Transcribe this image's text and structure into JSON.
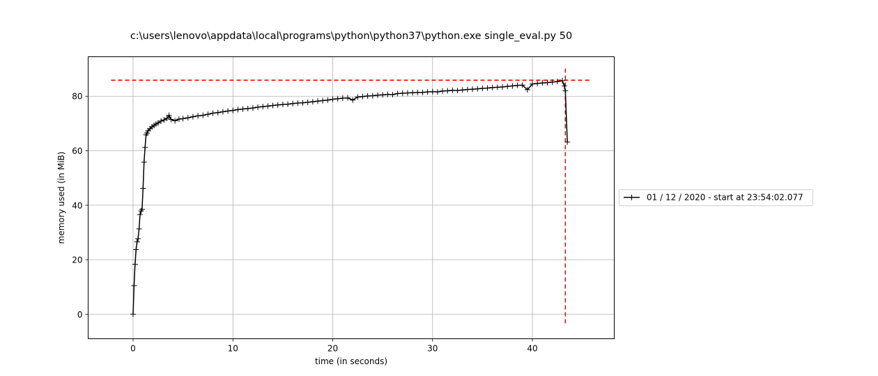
{
  "chart_data": {
    "type": "line",
    "title": "c:\\users\\lenovo\\appdata\\local\\programs\\python\\python37\\python.exe single_eval.py 50",
    "xlabel": "time (in seconds)",
    "ylabel": "memory used (in MiB)",
    "xlim": [
      -4.5,
      48.2
    ],
    "ylim": [
      -9,
      94.5
    ],
    "x_ticks": [
      0,
      10,
      20,
      30,
      40
    ],
    "y_ticks": [
      0,
      20,
      40,
      60,
      80
    ],
    "grid": true,
    "legend_placement": "right, outside the plot",
    "colors": {
      "series": "#000000",
      "markers_lines": "#ff0000",
      "grid": "#b0b0b0"
    },
    "series": [
      {
        "name": "01 / 12 / 2020 - start at 23:54:02.077",
        "marker": "+",
        "points": [
          [
            0.0,
            0.0
          ],
          [
            0.1,
            10.5
          ],
          [
            0.2,
            18.3
          ],
          [
            0.3,
            23.7
          ],
          [
            0.4,
            26.6
          ],
          [
            0.5,
            27.7
          ],
          [
            0.6,
            31.3
          ],
          [
            0.7,
            36.6
          ],
          [
            0.8,
            37.9
          ],
          [
            0.9,
            38.5
          ],
          [
            1.0,
            46.2
          ],
          [
            1.1,
            55.8
          ],
          [
            1.2,
            61.2
          ],
          [
            1.3,
            65.8
          ],
          [
            1.4,
            66.5
          ],
          [
            1.5,
            67.3
          ],
          [
            1.7,
            68.1
          ],
          [
            1.9,
            68.8
          ],
          [
            2.1,
            69.3
          ],
          [
            2.3,
            69.8
          ],
          [
            2.5,
            70.2
          ],
          [
            2.8,
            70.9
          ],
          [
            3.1,
            71.3
          ],
          [
            3.4,
            71.9
          ],
          [
            3.6,
            73.0
          ],
          [
            3.8,
            71.5
          ],
          [
            4.2,
            71.0
          ],
          [
            4.6,
            71.6
          ],
          [
            5.0,
            71.8
          ],
          [
            5.5,
            72.1
          ],
          [
            6.0,
            72.5
          ],
          [
            6.5,
            72.8
          ],
          [
            7.0,
            73.0
          ],
          [
            7.5,
            73.4
          ],
          [
            8.0,
            73.8
          ],
          [
            8.5,
            74.0
          ],
          [
            9.0,
            74.3
          ],
          [
            9.5,
            74.6
          ],
          [
            10.0,
            74.8
          ],
          [
            10.5,
            75.1
          ],
          [
            11.0,
            75.3
          ],
          [
            11.5,
            75.5
          ],
          [
            12.0,
            75.7
          ],
          [
            12.5,
            76.0
          ],
          [
            13.0,
            76.2
          ],
          [
            13.5,
            76.4
          ],
          [
            14.0,
            76.6
          ],
          [
            14.5,
            76.8
          ],
          [
            15.0,
            77.0
          ],
          [
            15.5,
            77.1
          ],
          [
            16.0,
            77.3
          ],
          [
            16.5,
            77.5
          ],
          [
            17.0,
            77.6
          ],
          [
            17.5,
            77.8
          ],
          [
            18.0,
            78.0
          ],
          [
            18.5,
            78.2
          ],
          [
            19.0,
            78.4
          ],
          [
            19.5,
            78.6
          ],
          [
            20.0,
            78.9
          ],
          [
            20.5,
            79.1
          ],
          [
            21.0,
            79.3
          ],
          [
            21.5,
            79.4
          ],
          [
            22.0,
            78.6
          ],
          [
            22.5,
            79.7
          ],
          [
            23.0,
            79.9
          ],
          [
            23.5,
            80.1
          ],
          [
            24.0,
            80.2
          ],
          [
            24.5,
            80.4
          ],
          [
            25.0,
            80.5
          ],
          [
            25.5,
            80.7
          ],
          [
            26.0,
            80.6
          ],
          [
            26.5,
            81.0
          ],
          [
            27.0,
            81.1
          ],
          [
            27.5,
            81.2
          ],
          [
            28.0,
            81.3
          ],
          [
            28.5,
            81.4
          ],
          [
            29.0,
            81.4
          ],
          [
            29.5,
            81.6
          ],
          [
            30.0,
            81.7
          ],
          [
            30.5,
            81.6
          ],
          [
            31.0,
            81.9
          ],
          [
            31.5,
            82.0
          ],
          [
            32.0,
            82.2
          ],
          [
            32.5,
            82.1
          ],
          [
            33.0,
            82.3
          ],
          [
            33.5,
            82.5
          ],
          [
            34.0,
            82.6
          ],
          [
            34.5,
            82.7
          ],
          [
            35.0,
            82.9
          ],
          [
            35.5,
            83.0
          ],
          [
            36.0,
            83.2
          ],
          [
            36.5,
            83.3
          ],
          [
            37.0,
            83.4
          ],
          [
            37.5,
            83.6
          ],
          [
            38.0,
            83.8
          ],
          [
            38.5,
            84.0
          ],
          [
            39.0,
            84.1
          ],
          [
            39.5,
            82.4
          ],
          [
            40.0,
            84.5
          ],
          [
            40.5,
            84.7
          ],
          [
            41.0,
            84.9
          ],
          [
            41.5,
            85.0
          ],
          [
            42.0,
            85.2
          ],
          [
            42.5,
            85.4
          ],
          [
            43.0,
            85.7
          ],
          [
            43.2,
            83.8
          ],
          [
            43.3,
            82.0
          ],
          [
            43.5,
            63.2
          ]
        ]
      }
    ],
    "markers": [
      {
        "type": "horizontal-line",
        "y": 85.9,
        "x_range": [
          -2.2,
          45.8
        ],
        "style": "dashed",
        "color": "#ff0000"
      },
      {
        "type": "vertical-line",
        "x": 43.3,
        "y_range": [
          -4.3,
          90.2
        ],
        "style": "dashed",
        "color": "#ff0000"
      }
    ]
  }
}
